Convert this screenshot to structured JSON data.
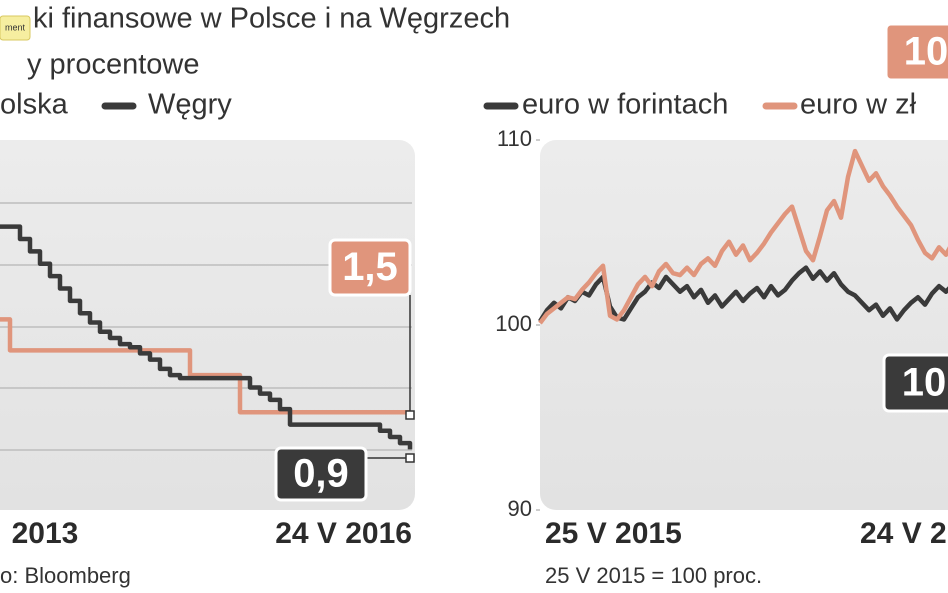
{
  "badge": "ment",
  "chart_data": [
    {
      "type": "line",
      "step": true,
      "title": "ki finansowe w Polsce i na Węgrzech",
      "subtitle": "y procentowe",
      "categories": [
        null,
        null,
        null,
        null,
        "2013",
        null,
        null,
        null,
        null,
        null,
        null,
        null,
        null,
        null,
        null,
        null,
        null,
        null,
        null,
        null,
        null,
        null,
        null,
        null,
        null,
        null,
        null,
        null,
        null,
        null,
        null,
        null,
        null,
        null,
        null,
        null,
        null,
        null,
        null,
        null,
        null,
        "24 V 2016"
      ],
      "series": [
        {
          "name": "olska",
          "color": "#e0957c",
          "values": [
            3.0,
            2.5,
            2.5,
            2.5,
            2.5,
            2.5,
            2.5,
            2.5,
            2.5,
            2.5,
            2.5,
            2.5,
            2.5,
            2.5,
            2.5,
            2.5,
            2.5,
            2.5,
            2.5,
            2.1,
            2.1,
            2.1,
            2.1,
            2.1,
            1.5,
            1.5,
            1.5,
            1.5,
            1.5,
            1.5,
            1.5,
            1.5,
            1.5,
            1.5,
            1.5,
            1.5,
            1.5,
            1.5,
            1.5,
            1.5,
            1.5,
            1.5
          ]
        },
        {
          "name": "Węgry",
          "color": "#3a3a3a",
          "values": [
            4.5,
            4.5,
            4.3,
            4.1,
            3.9,
            3.7,
            3.5,
            3.3,
            3.1,
            2.95,
            2.8,
            2.7,
            2.6,
            2.55,
            2.45,
            2.35,
            2.2,
            2.1,
            2.05,
            2.05,
            2.05,
            2.05,
            2.05,
            2.05,
            2.05,
            1.9,
            1.8,
            1.7,
            1.55,
            1.3,
            1.3,
            1.3,
            1.3,
            1.3,
            1.3,
            1.3,
            1.3,
            1.3,
            1.2,
            1.1,
            1.0,
            0.9
          ]
        }
      ],
      "ylim": [
        0,
        5.9
      ],
      "annotations": [
        "1,5",
        "0,9"
      ],
      "source": "o: Bloomberg"
    },
    {
      "type": "line",
      "step": false,
      "categories": [
        "25 V 2015",
        null,
        null,
        null,
        null,
        null,
        null,
        null,
        null,
        null,
        null,
        null,
        null,
        null,
        null,
        null,
        null,
        null,
        null,
        null,
        null,
        null,
        null,
        null,
        null,
        null,
        null,
        null,
        null,
        null,
        null,
        null,
        null,
        null,
        null,
        null,
        null,
        null,
        null,
        null,
        null,
        null,
        null,
        null,
        null,
        "24 V 2",
        null,
        null,
        null,
        null,
        null,
        null,
        null,
        null,
        null,
        null,
        null,
        null,
        null,
        null
      ],
      "series": [
        {
          "name": "euro w forintach",
          "color": "#3a3a3a",
          "values": [
            100.2,
            100.8,
            101.2,
            100.9,
            101.5,
            101.3,
            101.8,
            101.6,
            102.2,
            102.6,
            101.0,
            100.4,
            100.3,
            100.9,
            101.5,
            101.8,
            102.3,
            102.0,
            102.6,
            102.2,
            101.8,
            102.1,
            101.5,
            101.9,
            101.2,
            101.6,
            101.0,
            101.4,
            101.8,
            101.3,
            101.7,
            102.0,
            101.5,
            102.1,
            101.6,
            101.9,
            102.4,
            102.8,
            103.1,
            102.5,
            102.9,
            102.4,
            102.8,
            102.2,
            101.8,
            101.6,
            101.2,
            100.8,
            101.1,
            100.5,
            100.9,
            100.3,
            100.8,
            101.2,
            101.5,
            101.1,
            101.7,
            102.1,
            101.8,
            102.2
          ]
        },
        {
          "name": "euro w zł",
          "color": "#e0957c",
          "values": [
            100.1,
            100.6,
            100.9,
            101.2,
            101.5,
            101.4,
            101.9,
            102.3,
            102.8,
            103.2,
            100.5,
            100.3,
            100.8,
            101.5,
            102.2,
            102.6,
            102.1,
            102.9,
            103.3,
            102.8,
            102.7,
            103.1,
            102.7,
            103.3,
            103.6,
            103.2,
            104.0,
            104.5,
            103.8,
            104.3,
            103.5,
            103.9,
            104.4,
            105.0,
            105.5,
            106.0,
            106.4,
            105.2,
            104.0,
            103.5,
            104.8,
            106.2,
            106.7,
            105.8,
            108.0,
            109.4,
            108.6,
            107.8,
            108.2,
            107.5,
            107.0,
            106.4,
            105.9,
            105.4,
            104.6,
            103.9,
            103.6,
            104.2,
            103.8,
            104.5
          ]
        }
      ],
      "ylim": [
        90,
        110
      ],
      "yticks": [
        90,
        100,
        110
      ],
      "annotations": [
        "10",
        "10"
      ],
      "note": "25 V 2015 = 100 proc."
    }
  ]
}
